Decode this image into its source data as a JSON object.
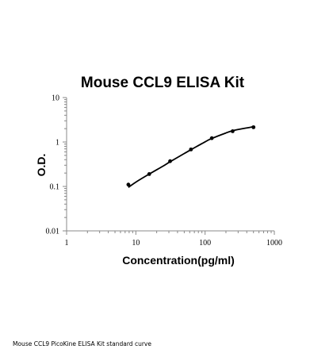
{
  "caption": "Mouse CCL9 PicoKine ELISA Kit standard curve",
  "chart_data": {
    "type": "scatter",
    "title": "Mouse CCL9 ELISA Kit",
    "xlabel": "Concentration(pg/ml)",
    "ylabel": "O.D.",
    "x_scale": "log",
    "y_scale": "log",
    "xlim": [
      1,
      1000
    ],
    "ylim": [
      0.01,
      10
    ],
    "x_ticks": [
      1,
      10,
      100,
      1000
    ],
    "y_ticks": [
      0.01,
      0.1,
      1,
      10
    ],
    "x_tick_labels": [
      "1",
      "10",
      "100",
      "1000"
    ],
    "y_tick_labels": [
      "0.01",
      "0.1",
      "1",
      "10"
    ],
    "grid": false,
    "legend": "none",
    "marker_color": "#000000",
    "line_color": "#000000",
    "series": [
      {
        "x": [
          7.8,
          15.6,
          31.25,
          62.5,
          125,
          250,
          500
        ],
        "y": [
          0.11,
          0.19,
          0.37,
          0.68,
          1.22,
          1.75,
          2.15
        ]
      }
    ],
    "fit_curve": {
      "x": [
        7.8,
        10,
        15.6,
        25,
        31.25,
        50,
        62.5,
        100,
        125,
        200,
        250,
        350,
        500
      ],
      "y": [
        0.095,
        0.125,
        0.19,
        0.29,
        0.36,
        0.55,
        0.67,
        1.01,
        1.2,
        1.6,
        1.8,
        2.0,
        2.2
      ]
    }
  }
}
